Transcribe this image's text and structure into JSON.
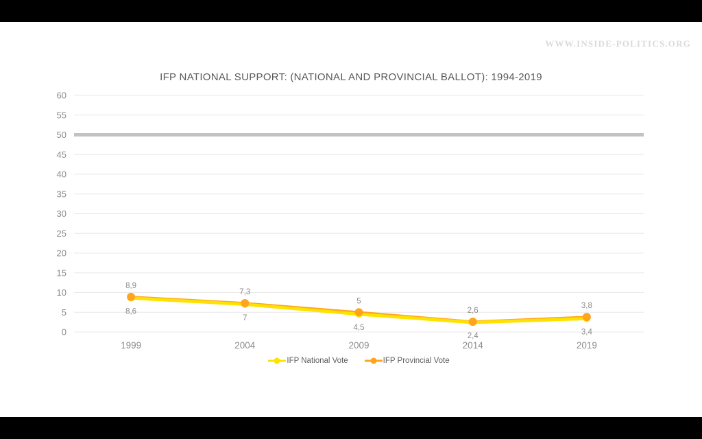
{
  "page": {
    "watermark": "WWW.INSIDE-POLITICS.ORG",
    "title": "IFP NATIONAL SUPPORT: (NATIONAL AND PROVINCIAL BALLOT): 1994-2019"
  },
  "colors": {
    "national": "#FFE300",
    "provincial": "#FFA41C",
    "gridline": "#e8e8e8",
    "reference_line": "#c2c2c2",
    "axis_text": "#8c8c8c",
    "data_label_text": "#8c8c8c",
    "title_text": "#595959",
    "watermark_text": "#dadada",
    "letterbox_bars": "#000000"
  },
  "chart_data": {
    "type": "line",
    "title": "IFP NATIONAL SUPPORT: (NATIONAL AND PROVINCIAL BALLOT): 1994-2019",
    "categories": [
      "1999",
      "2004",
      "2009",
      "2014",
      "2019"
    ],
    "series": [
      {
        "name": "IFP National Vote",
        "color": "#FFE300",
        "values": [
          8.6,
          7,
          4.5,
          2.4,
          3.4
        ],
        "labels": [
          "8,6",
          "7",
          "4,5",
          "2,4",
          "3,4"
        ],
        "label_position": "below"
      },
      {
        "name": "IFP Provincial Vote",
        "color": "#FFA41C",
        "values": [
          8.9,
          7.3,
          5,
          2.6,
          3.8
        ],
        "labels": [
          "8,9",
          "7,3",
          "5",
          "2,6",
          "3,8"
        ],
        "label_position": "above"
      }
    ],
    "xlabel": "",
    "ylabel": "",
    "ylim": [
      0,
      60
    ],
    "yticks": [
      0,
      5,
      10,
      15,
      20,
      25,
      30,
      35,
      40,
      45,
      50,
      55,
      60
    ],
    "reference_line_y": 50,
    "grid": true,
    "legend_position": "bottom"
  }
}
